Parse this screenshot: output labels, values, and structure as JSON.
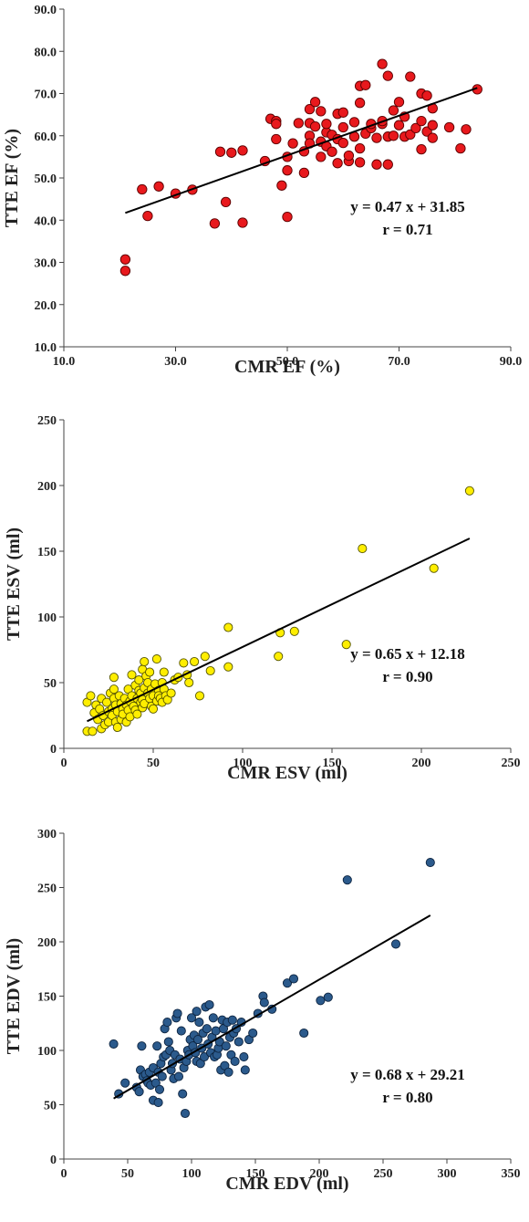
{
  "chart_data": [
    {
      "type": "scatter",
      "xlabel": "CMR EF (%)",
      "ylabel": "TTE EF (%)",
      "xlim": [
        10,
        90
      ],
      "ylim": [
        10,
        90
      ],
      "xticks": [
        "10.0",
        "30.0",
        "50.0",
        "70.0",
        "90.0"
      ],
      "yticks": [
        "10.0",
        "20.0",
        "30.0",
        "40.0",
        "50.0",
        "60.0",
        "70.0",
        "80.0",
        "90.0"
      ],
      "equation": "y = 0.47 x + 31.85",
      "r_text": "r = 0.71",
      "trendline": {
        "slope": 0.47,
        "intercept": 31.85,
        "x_range": [
          21,
          84
        ]
      },
      "marker_color": "#e8191d",
      "points": [
        [
          21,
          30.7
        ],
        [
          21,
          28
        ],
        [
          24,
          47.3
        ],
        [
          25,
          41
        ],
        [
          27,
          48
        ],
        [
          30,
          46.3
        ],
        [
          33,
          47.2
        ],
        [
          37,
          39.2
        ],
        [
          38,
          56.2
        ],
        [
          39,
          44.3
        ],
        [
          40,
          56
        ],
        [
          42,
          56.5
        ],
        [
          42,
          39.4
        ],
        [
          46,
          54
        ],
        [
          47,
          64
        ],
        [
          48,
          63.5
        ],
        [
          48,
          62.8
        ],
        [
          48,
          59.2
        ],
        [
          49,
          48.2
        ],
        [
          50,
          40.8
        ],
        [
          50,
          51.8
        ],
        [
          50,
          55
        ],
        [
          51,
          58.2
        ],
        [
          52,
          63
        ],
        [
          53,
          56.3
        ],
        [
          53,
          51.2
        ],
        [
          54,
          66.3
        ],
        [
          54,
          60
        ],
        [
          54,
          58.2
        ],
        [
          54,
          63
        ],
        [
          55,
          68
        ],
        [
          55,
          62.2
        ],
        [
          56,
          55
        ],
        [
          56,
          58.6
        ],
        [
          56,
          65.8
        ],
        [
          57,
          60.8
        ],
        [
          57,
          57.5
        ],
        [
          57,
          62.8
        ],
        [
          58,
          56.2
        ],
        [
          58,
          60.2
        ],
        [
          59,
          65.2
        ],
        [
          59,
          59.2
        ],
        [
          59,
          53.5
        ],
        [
          60,
          65.5
        ],
        [
          60,
          62
        ],
        [
          60,
          58.3
        ],
        [
          61,
          54
        ],
        [
          61,
          55.3
        ],
        [
          62,
          59.8
        ],
        [
          62,
          63.2
        ],
        [
          63,
          71.8
        ],
        [
          63,
          57
        ],
        [
          63,
          67.8
        ],
        [
          63,
          53.7
        ],
        [
          64,
          72
        ],
        [
          64,
          60.5
        ],
        [
          65,
          61.8
        ],
        [
          65,
          62.8
        ],
        [
          66,
          59.5
        ],
        [
          66,
          53.2
        ],
        [
          67,
          77
        ],
        [
          67,
          62.8
        ],
        [
          67,
          63.5
        ],
        [
          68,
          74.2
        ],
        [
          68,
          53.2
        ],
        [
          68,
          59.8
        ],
        [
          69,
          60
        ],
        [
          69,
          66
        ],
        [
          70,
          68
        ],
        [
          70,
          62.5
        ],
        [
          71,
          64.5
        ],
        [
          71,
          59.8
        ],
        [
          72,
          74
        ],
        [
          72,
          60.3
        ],
        [
          73,
          61.8
        ],
        [
          74,
          56.8
        ],
        [
          74,
          63.5
        ],
        [
          74,
          70
        ],
        [
          75,
          69.5
        ],
        [
          75,
          61
        ],
        [
          76,
          59.5
        ],
        [
          76,
          66.5
        ],
        [
          76,
          62.5
        ],
        [
          79,
          62
        ],
        [
          81,
          57
        ],
        [
          82,
          61.5
        ],
        [
          84,
          71
        ]
      ]
    },
    {
      "type": "scatter",
      "xlabel": "CMR ESV (ml)",
      "ylabel": "TTE  ESV (ml)",
      "xlim": [
        0,
        250
      ],
      "ylim": [
        0,
        250
      ],
      "xticks": [
        "0",
        "50",
        "100",
        "150",
        "200",
        "250"
      ],
      "yticks": [
        "0",
        "50",
        "100",
        "150",
        "200",
        "250"
      ],
      "equation": "y = 0.65 x + 12.18",
      "r_text": "r = 0.90",
      "trendline": {
        "slope": 0.65,
        "intercept": 12.18,
        "x_range": [
          13,
          227
        ]
      },
      "marker_color": "#ffee00",
      "points": [
        [
          13,
          35
        ],
        [
          13,
          13
        ],
        [
          15,
          40
        ],
        [
          16,
          13
        ],
        [
          17,
          27
        ],
        [
          18,
          33
        ],
        [
          19,
          22
        ],
        [
          20,
          30
        ],
        [
          21,
          38
        ],
        [
          21,
          15
        ],
        [
          22,
          25
        ],
        [
          23,
          18
        ],
        [
          24,
          35
        ],
        [
          25,
          28
        ],
        [
          25,
          20
        ],
        [
          26,
          42
        ],
        [
          27,
          30
        ],
        [
          27,
          25
        ],
        [
          28,
          54
        ],
        [
          28,
          45
        ],
        [
          28,
          38
        ],
        [
          29,
          33
        ],
        [
          29,
          20
        ],
        [
          30,
          28
        ],
        [
          30,
          16
        ],
        [
          31,
          40
        ],
        [
          32,
          34
        ],
        [
          32,
          22
        ],
        [
          33,
          30
        ],
        [
          33,
          26
        ],
        [
          34,
          38
        ],
        [
          35,
          33
        ],
        [
          35,
          20
        ],
        [
          36,
          45
        ],
        [
          36,
          29
        ],
        [
          37,
          36
        ],
        [
          37,
          24
        ],
        [
          38,
          56
        ],
        [
          38,
          40
        ],
        [
          39,
          32
        ],
        [
          40,
          48
        ],
        [
          40,
          29
        ],
        [
          41,
          38
        ],
        [
          41,
          26
        ],
        [
          42,
          52
        ],
        [
          42,
          44
        ],
        [
          43,
          35
        ],
        [
          43,
          42
        ],
        [
          44,
          60
        ],
        [
          44,
          37
        ],
        [
          44,
          31
        ],
        [
          45,
          66
        ],
        [
          45,
          46
        ],
        [
          45,
          34
        ],
        [
          46,
          55
        ],
        [
          47,
          42
        ],
        [
          47,
          50
        ],
        [
          48,
          38
        ],
        [
          48,
          58
        ],
        [
          49,
          45
        ],
        [
          49,
          32
        ],
        [
          50,
          40
        ],
        [
          50,
          30
        ],
        [
          51,
          49
        ],
        [
          52,
          36
        ],
        [
          52,
          68
        ],
        [
          53,
          44
        ],
        [
          53,
          40
        ],
        [
          54,
          38
        ],
        [
          55,
          35
        ],
        [
          55,
          50
        ],
        [
          56,
          58
        ],
        [
          56,
          45
        ],
        [
          57,
          40
        ],
        [
          58,
          37
        ],
        [
          60,
          42
        ],
        [
          62,
          52
        ],
        [
          64,
          54
        ],
        [
          67,
          65
        ],
        [
          69,
          56
        ],
        [
          70,
          50
        ],
        [
          73,
          66
        ],
        [
          76,
          40
        ],
        [
          79,
          70
        ],
        [
          82,
          59
        ],
        [
          92,
          92
        ],
        [
          92,
          62
        ],
        [
          120,
          70
        ],
        [
          121,
          88
        ],
        [
          129,
          89
        ],
        [
          158,
          79
        ],
        [
          167,
          152
        ],
        [
          207,
          137
        ],
        [
          227,
          196
        ]
      ]
    },
    {
      "type": "scatter",
      "xlabel": "CMR EDV (ml)",
      "ylabel": "TTE  EDV (ml)",
      "xlim": [
        0,
        350
      ],
      "ylim": [
        0,
        300
      ],
      "xticks": [
        "0",
        "50",
        "100",
        "150",
        "200",
        "250",
        "300",
        "350"
      ],
      "yticks": [
        "0",
        "50",
        "100",
        "150",
        "200",
        "250",
        "300"
      ],
      "equation": "y = 0.68 x + 29.21",
      "r_text": "r = 0.80",
      "trendline": {
        "slope": 0.68,
        "intercept": 29.21,
        "x_range": [
          39,
          287
        ]
      },
      "marker_color": "#2b5a8c",
      "points": [
        [
          39,
          106
        ],
        [
          43,
          60
        ],
        [
          48,
          70
        ],
        [
          57,
          66
        ],
        [
          59,
          62
        ],
        [
          60,
          82
        ],
        [
          61,
          104
        ],
        [
          62,
          76
        ],
        [
          64,
          78
        ],
        [
          65,
          72
        ],
        [
          66,
          70
        ],
        [
          67,
          80
        ],
        [
          68,
          68
        ],
        [
          70,
          54
        ],
        [
          70,
          84
        ],
        [
          72,
          70
        ],
        [
          73,
          104
        ],
        [
          74,
          52
        ],
        [
          74,
          80
        ],
        [
          75,
          64
        ],
        [
          76,
          88
        ],
        [
          77,
          76
        ],
        [
          78,
          94
        ],
        [
          79,
          120
        ],
        [
          80,
          96
        ],
        [
          81,
          126
        ],
        [
          82,
          108
        ],
        [
          83,
          100
        ],
        [
          84,
          82
        ],
        [
          85,
          88
        ],
        [
          86,
          74
        ],
        [
          87,
          96
        ],
        [
          88,
          130
        ],
        [
          89,
          134
        ],
        [
          90,
          76
        ],
        [
          91,
          92
        ],
        [
          92,
          118
        ],
        [
          93,
          60
        ],
        [
          94,
          84
        ],
        [
          95,
          42
        ],
        [
          96,
          90
        ],
        [
          97,
          100
        ],
        [
          98,
          96
        ],
        [
          99,
          110
        ],
        [
          100,
          130
        ],
        [
          101,
          104
        ],
        [
          102,
          114
        ],
        [
          103,
          98
        ],
        [
          104,
          90
        ],
        [
          104,
          136
        ],
        [
          105,
          110
        ],
        [
          106,
          126
        ],
        [
          107,
          88
        ],
        [
          108,
          102
        ],
        [
          109,
          116
        ],
        [
          110,
          94
        ],
        [
          111,
          140
        ],
        [
          112,
          120
        ],
        [
          113,
          106
        ],
        [
          114,
          142
        ],
        [
          115,
          98
        ],
        [
          116,
          112
        ],
        [
          117,
          130
        ],
        [
          118,
          94
        ],
        [
          119,
          118
        ],
        [
          120,
          96
        ],
        [
          121,
          102
        ],
        [
          122,
          108
        ],
        [
          123,
          82
        ],
        [
          124,
          128
        ],
        [
          125,
          120
        ],
        [
          126,
          86
        ],
        [
          127,
          104
        ],
        [
          128,
          126
        ],
        [
          129,
          80
        ],
        [
          130,
          112
        ],
        [
          131,
          96
        ],
        [
          132,
          128
        ],
        [
          133,
          116
        ],
        [
          134,
          90
        ],
        [
          135,
          120
        ],
        [
          137,
          108
        ],
        [
          139,
          126
        ],
        [
          141,
          94
        ],
        [
          142,
          82
        ],
        [
          145,
          110
        ],
        [
          148,
          116
        ],
        [
          152,
          134
        ],
        [
          156,
          150
        ],
        [
          157,
          144
        ],
        [
          163,
          138
        ],
        [
          175,
          162
        ],
        [
          180,
          166
        ],
        [
          188,
          116
        ],
        [
          201,
          146
        ],
        [
          207,
          149
        ],
        [
          222,
          257
        ],
        [
          260,
          198
        ],
        [
          287,
          273
        ]
      ]
    }
  ]
}
